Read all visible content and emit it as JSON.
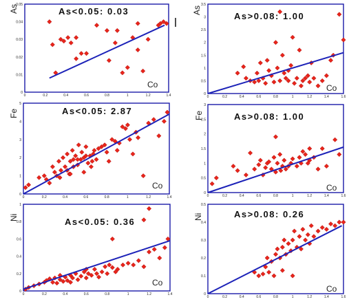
{
  "chart_data": [
    {
      "type": "scatter",
      "title": "As<0.05: 0.03",
      "xlabel": "Co",
      "ylabel": "As",
      "xlim": [
        0,
        1.4
      ],
      "ylim": [
        0,
        0.05
      ],
      "xticks": [
        "0",
        "0.2",
        "0.4",
        "0.6",
        "0.8",
        "1",
        "1.2",
        "1.4"
      ],
      "yticks": [
        "0",
        "0.01",
        "0.02",
        "0.03",
        "0.04",
        "0.05"
      ],
      "points": [
        [
          0.24,
          0.04
        ],
        [
          0.27,
          0.027
        ],
        [
          0.3,
          0.011
        ],
        [
          0.35,
          0.03
        ],
        [
          0.38,
          0.029
        ],
        [
          0.42,
          0.031
        ],
        [
          0.45,
          0.028
        ],
        [
          0.5,
          0.031
        ],
        [
          0.5,
          0.019
        ],
        [
          0.55,
          0.022
        ],
        [
          0.6,
          0.022
        ],
        [
          0.7,
          0.038
        ],
        [
          0.8,
          0.035
        ],
        [
          0.82,
          0.018
        ],
        [
          0.9,
          0.035
        ],
        [
          0.95,
          0.011
        ],
        [
          1.0,
          0.014
        ],
        [
          1.05,
          0.031
        ],
        [
          1.1,
          0.024
        ],
        [
          1.15,
          0.012
        ],
        [
          1.2,
          0.03
        ],
        [
          1.3,
          0.038
        ],
        [
          1.32,
          0.039
        ],
        [
          1.35,
          0.04
        ],
        [
          1.38,
          0.039
        ],
        [
          0.88,
          0.028
        ],
        [
          1.1,
          0.039
        ]
      ],
      "fit_line": [
        [
          0.24,
          0.008
        ],
        [
          1.36,
          0.038
        ]
      ]
    },
    {
      "type": "scatter",
      "title": "As>0.08: 1.00",
      "xlabel": "Co",
      "ylabel": "As",
      "xlim": [
        0,
        1.6
      ],
      "ylim": [
        0,
        3.5
      ],
      "xticks": [
        "0",
        "0.2",
        "0.4",
        "0.6",
        "0.8",
        "1",
        "1.2",
        "1.4",
        "1.6"
      ],
      "yticks": [
        "0",
        "0.5",
        "1",
        "1.5",
        "2",
        "2.5",
        "3",
        "3.5"
      ],
      "points": [
        [
          0.35,
          0.8
        ],
        [
          0.42,
          1.05
        ],
        [
          0.45,
          0.6
        ],
        [
          0.5,
          0.5
        ],
        [
          0.55,
          0.45
        ],
        [
          0.58,
          0.8
        ],
        [
          0.6,
          0.5
        ],
        [
          0.62,
          1.2
        ],
        [
          0.65,
          0.6
        ],
        [
          0.68,
          0.4
        ],
        [
          0.7,
          1.3
        ],
        [
          0.72,
          0.9
        ],
        [
          0.75,
          0.7
        ],
        [
          0.8,
          2.0
        ],
        [
          0.82,
          1.0
        ],
        [
          0.85,
          0.5
        ],
        [
          0.85,
          3.2
        ],
        [
          0.88,
          1.5
        ],
        [
          0.9,
          0.8
        ],
        [
          0.92,
          0.6
        ],
        [
          0.95,
          0.5
        ],
        [
          0.98,
          1.1
        ],
        [
          1.0,
          2.2
        ],
        [
          1.02,
          0.4
        ],
        [
          1.05,
          0.6
        ],
        [
          1.08,
          1.7
        ],
        [
          1.1,
          0.3
        ],
        [
          1.12,
          0.5
        ],
        [
          1.15,
          0.6
        ],
        [
          1.18,
          0.7
        ],
        [
          1.2,
          0.45
        ],
        [
          1.22,
          1.2
        ],
        [
          1.25,
          0.6
        ],
        [
          1.3,
          0.3
        ],
        [
          1.35,
          0.5
        ],
        [
          1.4,
          0.7
        ],
        [
          1.45,
          1.3
        ],
        [
          1.48,
          1.5
        ],
        [
          1.55,
          3.1
        ],
        [
          1.6,
          2.1
        ],
        [
          0.78,
          0.45
        ],
        [
          0.95,
          0.9
        ]
      ],
      "fit_line": [
        [
          0,
          0
        ],
        [
          1.6,
          1.6
        ]
      ]
    },
    {
      "type": "scatter",
      "title": "As<0.05: 2.87",
      "xlabel": "Co",
      "ylabel": "Fe",
      "xlim": [
        0,
        1.4
      ],
      "ylim": [
        0,
        5
      ],
      "xticks": [
        "0",
        "0.2",
        "0.4",
        "0.6",
        "0.8",
        "1",
        "1.2",
        "1.4"
      ],
      "yticks": [
        "0",
        "1",
        "2",
        "3",
        "4",
        "5"
      ],
      "points": [
        [
          0.02,
          0.35
        ],
        [
          0.05,
          0.5
        ],
        [
          0.15,
          0.9
        ],
        [
          0.2,
          1.0
        ],
        [
          0.22,
          0.8
        ],
        [
          0.25,
          0.6
        ],
        [
          0.28,
          1.5
        ],
        [
          0.3,
          1.2
        ],
        [
          0.32,
          1.0
        ],
        [
          0.34,
          1.8
        ],
        [
          0.36,
          1.3
        ],
        [
          0.38,
          2.0
        ],
        [
          0.4,
          1.5
        ],
        [
          0.42,
          2.2
        ],
        [
          0.44,
          1.1
        ],
        [
          0.45,
          1.8
        ],
        [
          0.47,
          2.4
        ],
        [
          0.48,
          1.9
        ],
        [
          0.5,
          2.1
        ],
        [
          0.52,
          1.6
        ],
        [
          0.53,
          2.7
        ],
        [
          0.55,
          1.9
        ],
        [
          0.56,
          2.3
        ],
        [
          0.58,
          2.0
        ],
        [
          0.6,
          2.6
        ],
        [
          0.62,
          1.7
        ],
        [
          0.64,
          2.1
        ],
        [
          0.65,
          1.5
        ],
        [
          0.67,
          2.2
        ],
        [
          0.7,
          1.9
        ],
        [
          0.72,
          2.5
        ],
        [
          0.75,
          2.6
        ],
        [
          0.78,
          2.7
        ],
        [
          0.8,
          2.3
        ],
        [
          0.82,
          1.8
        ],
        [
          0.85,
          3.0
        ],
        [
          0.88,
          2.9
        ],
        [
          0.9,
          2.4
        ],
        [
          0.92,
          2.8
        ],
        [
          0.95,
          3.7
        ],
        [
          0.98,
          3.6
        ],
        [
          1.0,
          3.8
        ],
        [
          1.02,
          3.0
        ],
        [
          1.05,
          2.2
        ],
        [
          1.08,
          3.4
        ],
        [
          1.1,
          3.1
        ],
        [
          1.15,
          1.0
        ],
        [
          1.2,
          3.9
        ],
        [
          1.25,
          4.1
        ],
        [
          1.3,
          3.2
        ],
        [
          1.35,
          4.0
        ],
        [
          1.38,
          4.5
        ],
        [
          0.6,
          2.1
        ],
        [
          0.66,
          1.8
        ],
        [
          0.58,
          1.2
        ],
        [
          0.48,
          1.5
        ],
        [
          0.42,
          1.3
        ],
        [
          0.45,
          1.1
        ],
        [
          0.35,
          0.9
        ],
        [
          0.52,
          1.9
        ],
        [
          0.68,
          2.4
        ]
      ],
      "fit_line": [
        [
          0,
          0
        ],
        [
          1.4,
          4.4
        ]
      ]
    },
    {
      "type": "scatter",
      "title": "As>0.08: 1.00",
      "xlabel": "Co",
      "ylabel": "Fe",
      "xlim": [
        0,
        1.6
      ],
      "ylim": [
        0,
        3
      ],
      "xticks": [
        "0",
        "0.2",
        "0.4",
        "0.6",
        "0.8",
        "1",
        "1.2",
        "1.4",
        "1.6"
      ],
      "yticks": [
        "0",
        "0.5",
        "1",
        "1.5",
        "2",
        "2.5",
        "3"
      ],
      "points": [
        [
          0.05,
          0.3
        ],
        [
          0.1,
          0.5
        ],
        [
          0.3,
          0.9
        ],
        [
          0.35,
          0.75
        ],
        [
          0.45,
          0.6
        ],
        [
          0.5,
          1.35
        ],
        [
          0.55,
          0.8
        ],
        [
          0.6,
          0.95
        ],
        [
          0.62,
          1.1
        ],
        [
          0.65,
          0.6
        ],
        [
          0.7,
          1.0
        ],
        [
          0.72,
          1.05
        ],
        [
          0.75,
          0.8
        ],
        [
          0.78,
          1.2
        ],
        [
          0.8,
          0.7
        ],
        [
          0.82,
          1.0
        ],
        [
          0.85,
          1.3
        ],
        [
          0.88,
          0.9
        ],
        [
          0.9,
          1.1
        ],
        [
          0.92,
          0.8
        ],
        [
          0.95,
          0.9
        ],
        [
          0.98,
          1.0
        ],
        [
          1.0,
          1.15
        ],
        [
          1.05,
          0.9
        ],
        [
          1.08,
          1.2
        ],
        [
          1.1,
          1.0
        ],
        [
          1.12,
          1.4
        ],
        [
          1.15,
          1.3
        ],
        [
          1.18,
          1.0
        ],
        [
          1.2,
          1.1
        ],
        [
          1.25,
          1.2
        ],
        [
          1.3,
          0.8
        ],
        [
          1.35,
          1.5
        ],
        [
          1.4,
          0.9
        ],
        [
          1.5,
          1.8
        ],
        [
          1.55,
          1.3
        ],
        [
          0.8,
          1.9
        ],
        [
          1.2,
          1.5
        ],
        [
          0.68,
          0.85
        ],
        [
          0.86,
          0.75
        ]
      ],
      "fit_line": [
        [
          0,
          0
        ],
        [
          1.6,
          1.55
        ]
      ]
    },
    {
      "type": "scatter",
      "title": "As<0.05: 0.36",
      "xlabel": "Co",
      "ylabel": "Ni",
      "xlim": [
        0,
        1.4
      ],
      "ylim": [
        0,
        1
      ],
      "xticks": [
        "0",
        "0.2",
        "0.4",
        "0.6",
        "0.8",
        "1",
        "1.2",
        "1.4"
      ],
      "yticks": [
        "0",
        "0.2",
        "0.4",
        "0.6",
        "0.8",
        "1"
      ],
      "points": [
        [
          0.02,
          0.02
        ],
        [
          0.05,
          0.04
        ],
        [
          0.1,
          0.06
        ],
        [
          0.15,
          0.08
        ],
        [
          0.2,
          0.1
        ],
        [
          0.22,
          0.12
        ],
        [
          0.25,
          0.14
        ],
        [
          0.28,
          0.1
        ],
        [
          0.3,
          0.15
        ],
        [
          0.32,
          0.09
        ],
        [
          0.35,
          0.13
        ],
        [
          0.38,
          0.11
        ],
        [
          0.4,
          0.16
        ],
        [
          0.42,
          0.12
        ],
        [
          0.45,
          0.18
        ],
        [
          0.47,
          0.15
        ],
        [
          0.5,
          0.2
        ],
        [
          0.52,
          0.13
        ],
        [
          0.55,
          0.17
        ],
        [
          0.58,
          0.22
        ],
        [
          0.6,
          0.15
        ],
        [
          0.62,
          0.2
        ],
        [
          0.65,
          0.18
        ],
        [
          0.68,
          0.25
        ],
        [
          0.7,
          0.2
        ],
        [
          0.72,
          0.16
        ],
        [
          0.75,
          0.22
        ],
        [
          0.78,
          0.28
        ],
        [
          0.8,
          0.2
        ],
        [
          0.82,
          0.3
        ],
        [
          0.85,
          0.27
        ],
        [
          0.88,
          0.22
        ],
        [
          0.9,
          0.25
        ],
        [
          0.95,
          0.3
        ],
        [
          1.0,
          0.32
        ],
        [
          1.05,
          0.3
        ],
        [
          1.1,
          0.35
        ],
        [
          1.15,
          0.28
        ],
        [
          1.2,
          0.45
        ],
        [
          1.25,
          0.48
        ],
        [
          1.3,
          0.38
        ],
        [
          1.35,
          0.5
        ],
        [
          1.38,
          0.6
        ],
        [
          1.2,
          0.95
        ],
        [
          1.15,
          0.82
        ],
        [
          0.85,
          0.6
        ],
        [
          0.6,
          0.25
        ],
        [
          0.45,
          0.1
        ],
        [
          0.35,
          0.18
        ]
      ],
      "fit_line": [
        [
          0,
          0.02
        ],
        [
          1.4,
          0.58
        ]
      ]
    },
    {
      "type": "scatter",
      "title": "As>0.08: 0.26",
      "xlabel": "Co",
      "ylabel": "Ni",
      "xlim": [
        0,
        1.6
      ],
      "ylim": [
        0,
        0.5
      ],
      "xticks": [
        "0",
        "0.2",
        "0.4",
        "0.6",
        "0.8",
        "1",
        "1.2",
        "1.4",
        "1.6"
      ],
      "yticks": [
        "0",
        "0.1",
        "0.2",
        "0.3",
        "0.4",
        "0.5"
      ],
      "points": [
        [
          0.55,
          0.12
        ],
        [
          0.6,
          0.1
        ],
        [
          0.65,
          0.11
        ],
        [
          0.7,
          0.2
        ],
        [
          0.72,
          0.12
        ],
        [
          0.75,
          0.18
        ],
        [
          0.78,
          0.1
        ],
        [
          0.8,
          0.22
        ],
        [
          0.82,
          0.25
        ],
        [
          0.85,
          0.2
        ],
        [
          0.88,
          0.26
        ],
        [
          0.9,
          0.3
        ],
        [
          0.92,
          0.22
        ],
        [
          0.95,
          0.28
        ],
        [
          0.98,
          0.24
        ],
        [
          1.0,
          0.3
        ],
        [
          1.02,
          0.35
        ],
        [
          1.05,
          0.26
        ],
        [
          1.08,
          0.32
        ],
        [
          1.1,
          0.25
        ],
        [
          1.12,
          0.36
        ],
        [
          1.15,
          0.3
        ],
        [
          1.18,
          0.33
        ],
        [
          1.2,
          0.28
        ],
        [
          1.22,
          0.38
        ],
        [
          1.25,
          0.32
        ],
        [
          1.3,
          0.35
        ],
        [
          1.35,
          0.37
        ],
        [
          1.4,
          0.36
        ],
        [
          1.45,
          0.39
        ],
        [
          1.5,
          0.38
        ],
        [
          1.55,
          0.4
        ],
        [
          1.6,
          0.4
        ],
        [
          1.0,
          0.1
        ],
        [
          0.68,
          0.15
        ],
        [
          0.88,
          0.13
        ]
      ],
      "fit_line": [
        [
          0,
          0
        ],
        [
          1.58,
          0.38
        ]
      ]
    }
  ]
}
